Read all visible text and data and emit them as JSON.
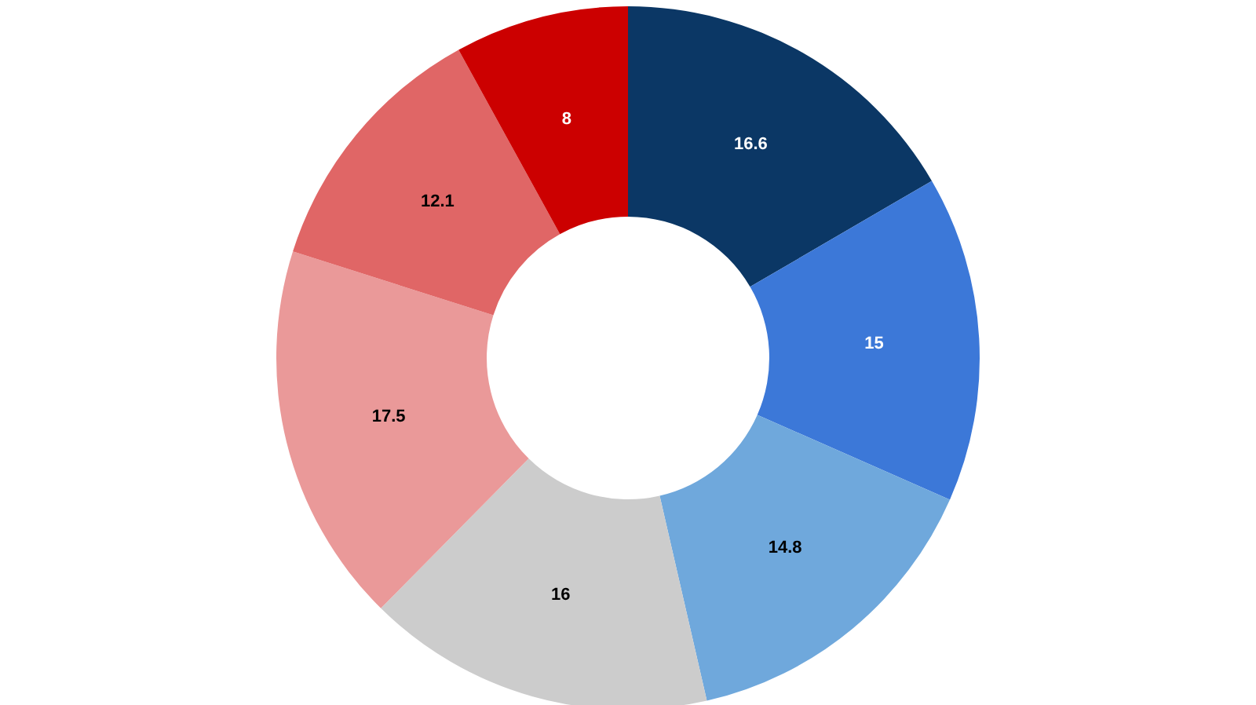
{
  "chart_data": {
    "type": "donut",
    "categories": [
      null,
      null,
      null,
      null,
      null,
      null,
      null
    ],
    "values": [
      16.6,
      15,
      14.8,
      16,
      17.5,
      12.1,
      8
    ],
    "colors": [
      "#0b3765",
      "#3c78d8",
      "#6fa8dc",
      "#cccccc",
      "#ea9999",
      "#e06666",
      "#cc0000"
    ],
    "data_labels": true
  }
}
